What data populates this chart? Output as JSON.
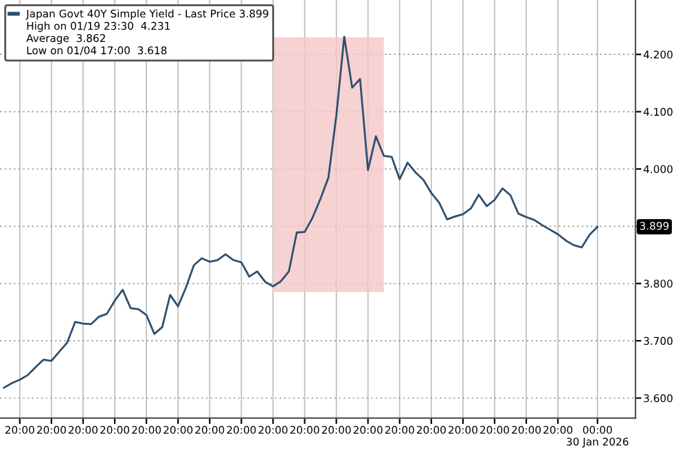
{
  "chart_data": {
    "type": "line",
    "categories": [
      null,
      null,
      "20:00",
      null,
      null,
      null,
      "20:00",
      null,
      null,
      null,
      "20:00",
      null,
      null,
      null,
      "20:00",
      null,
      null,
      null,
      "20:00",
      null,
      null,
      null,
      "20:00",
      null,
      null,
      null,
      "20:00",
      null,
      null,
      null,
      "20:00",
      null,
      null,
      null,
      "20:00",
      null,
      null,
      null,
      "20:00",
      null,
      null,
      null,
      "20:00",
      null,
      null,
      null,
      "20:00",
      null,
      null,
      null,
      "20:00",
      null,
      null,
      null,
      "20:00",
      null,
      null,
      null,
      "20:00",
      null,
      null,
      null,
      "20:00",
      null,
      null,
      null,
      "20:00",
      null,
      null,
      null,
      "20:00",
      null,
      null,
      null,
      null,
      "00:00\n30 Jan 2026"
    ],
    "series": [
      {
        "name": "Japan Govt 40Y Simple Yield - Last Price 3.899",
        "color": "#2d4f6e",
        "values": [
          3.618,
          3.626,
          3.632,
          3.64,
          3.654,
          3.667,
          3.665,
          3.681,
          3.697,
          3.733,
          3.73,
          3.729,
          3.742,
          3.747,
          3.77,
          3.789,
          3.757,
          3.755,
          3.745,
          3.712,
          3.724,
          3.78,
          3.76,
          3.793,
          3.832,
          3.844,
          3.838,
          3.841,
          3.851,
          3.841,
          3.837,
          3.812,
          3.821,
          3.803,
          3.795,
          3.804,
          3.821,
          3.889,
          3.89,
          3.915,
          3.948,
          3.985,
          4.093,
          4.231,
          4.142,
          4.157,
          3.998,
          4.057,
          4.023,
          4.021,
          3.982,
          4.011,
          3.994,
          3.981,
          3.958,
          3.941,
          3.912,
          3.917,
          3.921,
          3.931,
          3.955,
          3.935,
          3.946,
          3.966,
          3.954,
          3.922,
          3.916,
          3.911,
          3.902,
          3.894,
          3.886,
          3.875,
          3.867,
          3.863,
          3.885,
          3.899
        ]
      }
    ],
    "ylim": [
      3.565,
      4.295
    ],
    "yticks": [
      {
        "value": 3.6,
        "label": "3.600"
      },
      {
        "value": 3.7,
        "label": "3.700"
      },
      {
        "value": 3.8,
        "label": "3.800"
      },
      {
        "value": 3.9,
        "label": null
      },
      {
        "value": 4.0,
        "label": "4.000"
      },
      {
        "value": 4.1,
        "label": "4.100"
      },
      {
        "value": 4.2,
        "label": "4.200"
      }
    ],
    "annotations": [
      "High on 01/19 23:30  4.231",
      "Average  3.862",
      "Low on 01/04 17:00  3.618",
      "3.899"
    ],
    "grid": true,
    "legend": "top left",
    "marker": "none",
    "line_style": "solid"
  }
}
